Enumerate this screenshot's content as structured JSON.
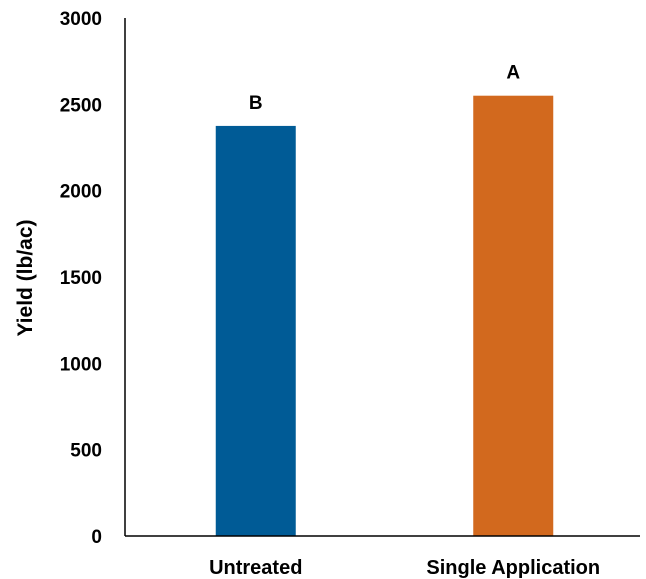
{
  "chart_data": {
    "type": "bar",
    "title": "",
    "xlabel": "",
    "ylabel": "Yield (lb/ac)",
    "categories": [
      "Untreated",
      "Single Application"
    ],
    "values": [
      2375,
      2550
    ],
    "data_labels": [
      "B",
      "A"
    ],
    "colors": [
      "#005b96",
      "#d2691e"
    ],
    "ylim": [
      0,
      3000
    ],
    "yticks": [
      0,
      500,
      1000,
      1500,
      2000,
      2500,
      3000
    ],
    "grid": false,
    "legend": "none"
  }
}
